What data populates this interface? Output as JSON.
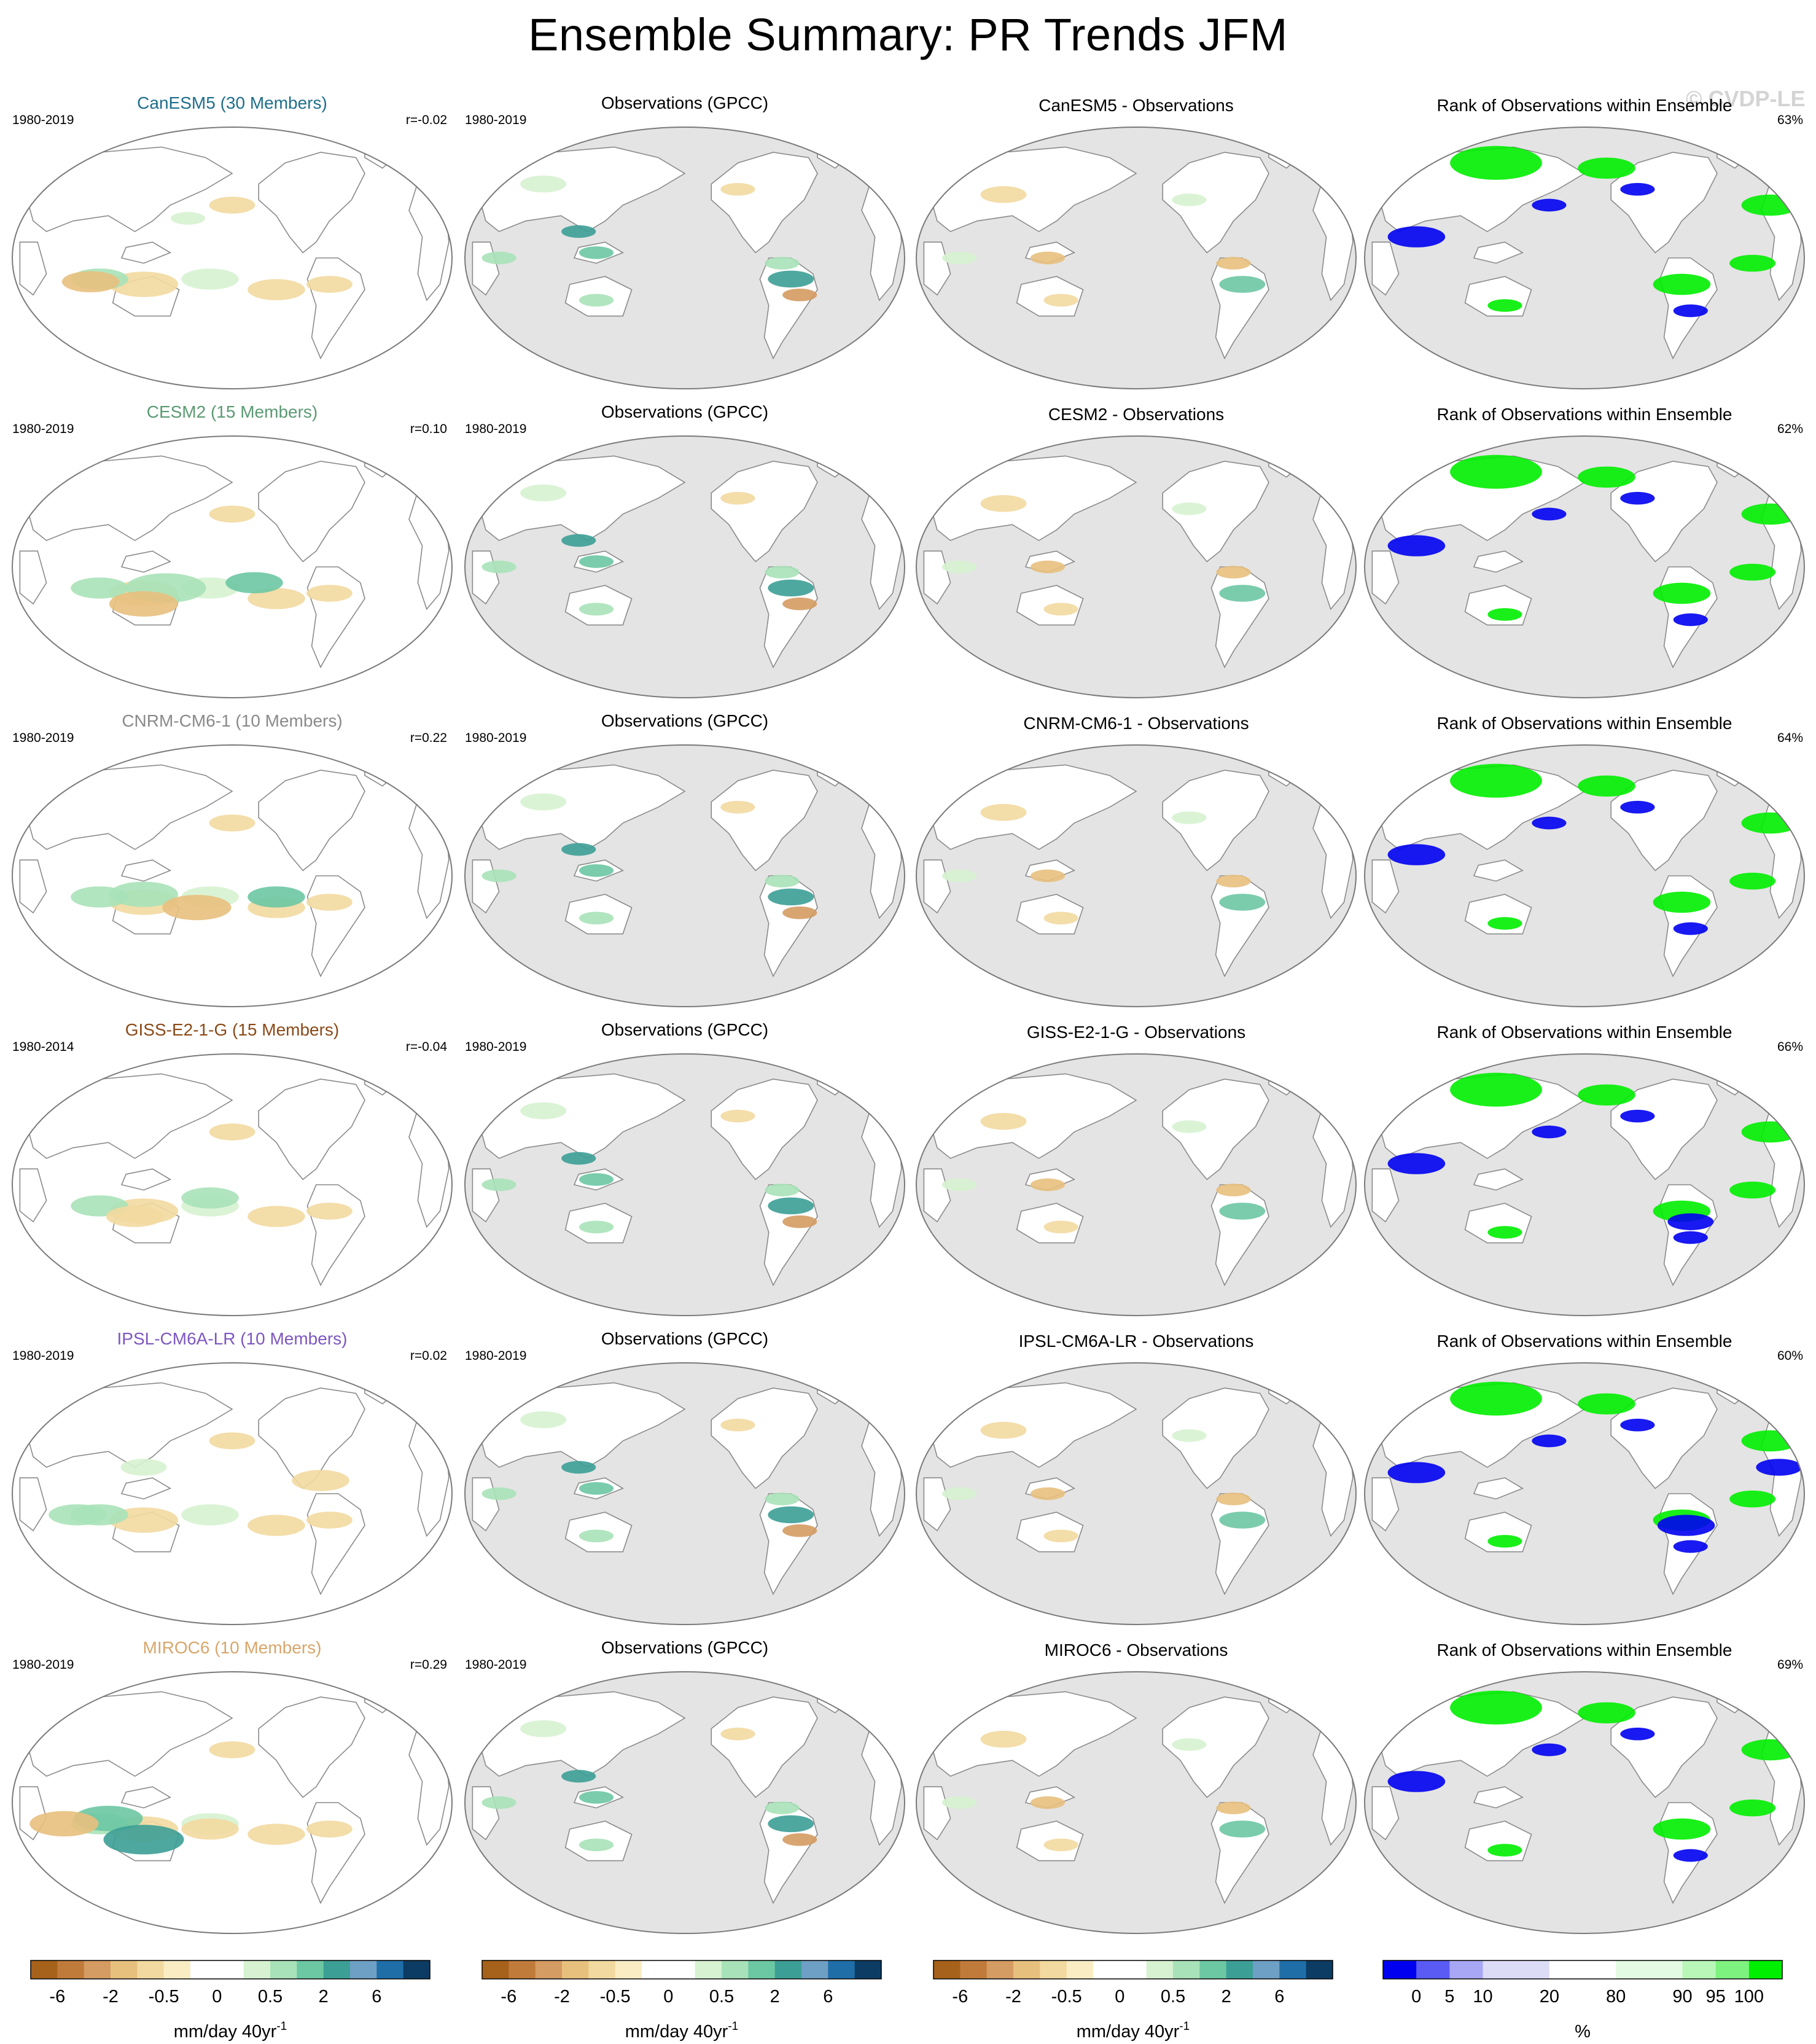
{
  "title": "Ensemble Summary: PR Trends JFM",
  "watermark": "© CVDP-LE",
  "rows": [
    {
      "model_title": "CanESM5 (30 Members)",
      "model_color": "#1f6e8c",
      "model_period": "1980-2019",
      "corr": "r=-0.02",
      "obs_title": "Observations (GPCC)",
      "obs_period": "1980-2019",
      "diff_title": "CanESM5 - Observations",
      "rank_title": "Rank of Observations within Ensemble",
      "rank_pct": "63%"
    },
    {
      "model_title": "CESM2 (15 Members)",
      "model_color": "#5b9a73",
      "model_period": "1980-2019",
      "corr": "r=0.10",
      "obs_title": "Observations (GPCC)",
      "obs_period": "1980-2019",
      "diff_title": "CESM2 - Observations",
      "rank_title": "Rank of Observations within Ensemble",
      "rank_pct": "62%"
    },
    {
      "model_title": "CNRM-CM6-1 (10 Members)",
      "model_color": "#8a8a8a",
      "model_period": "1980-2019",
      "corr": "r=0.22",
      "obs_title": "Observations (GPCC)",
      "obs_period": "1980-2019",
      "diff_title": "CNRM-CM6-1 - Observations",
      "rank_title": "Rank of Observations within Ensemble",
      "rank_pct": "64%"
    },
    {
      "model_title": "GISS-E2-1-G (15 Members)",
      "model_color": "#8b4a17",
      "model_period": "1980-2014",
      "corr": "r=-0.04",
      "obs_title": "Observations (GPCC)",
      "obs_period": "1980-2019",
      "diff_title": "GISS-E2-1-G - Observations",
      "rank_title": "Rank of Observations within Ensemble",
      "rank_pct": "66%"
    },
    {
      "model_title": "IPSL-CM6A-LR (10 Members)",
      "model_color": "#7e57c2",
      "model_period": "1980-2019",
      "corr": "r=0.02",
      "obs_title": "Observations (GPCC)",
      "obs_period": "1980-2019",
      "diff_title": "IPSL-CM6A-LR - Observations",
      "rank_title": "Rank of Observations within Ensemble",
      "rank_pct": "60%"
    },
    {
      "model_title": "MIROC6 (10 Members)",
      "model_color": "#d9a66b",
      "model_period": "1980-2019",
      "corr": "r=0.29",
      "obs_title": "Observations (GPCC)",
      "obs_period": "1980-2019",
      "diff_title": "MIROC6 - Observations",
      "rank_title": "Rank of Observations within Ensemble",
      "rank_pct": "69%"
    }
  ],
  "colorbars": {
    "trend": {
      "colors": [
        "#a6611a",
        "#c07a3a",
        "#d49b62",
        "#e8c07e",
        "#f2d9a0",
        "#faedc4",
        "#ffffff",
        "#ffffff",
        "#d6f2d0",
        "#a8e2b8",
        "#6cc7a3",
        "#3c9f96",
        "#6e9fc4",
        "#1f6ea8",
        "#0c3c63"
      ],
      "tick_labels": [
        "-6",
        "-2",
        "-0.5",
        "0",
        "0.5",
        "2",
        "6"
      ],
      "tick_boundaries": [
        1,
        3,
        5,
        7,
        9,
        11,
        13
      ],
      "units": "mm/day 40yr",
      "units_sup": "-1"
    },
    "rank": {
      "colors": [
        "#0000f0",
        "#5a5af5",
        "#a7a7f5",
        "#dcdcf7",
        "#dcdcf7",
        "#ffffff",
        "#ffffff",
        "#e3fbe3",
        "#e3fbe3",
        "#b8f7b8",
        "#7ef27e",
        "#00ee00"
      ],
      "tick_labels": [
        "0",
        "5",
        "10",
        "20",
        "80",
        "90",
        "95",
        "100"
      ],
      "tick_boundaries": [
        1,
        2,
        3,
        5,
        7,
        9,
        10,
        11
      ],
      "units": "%"
    }
  }
}
